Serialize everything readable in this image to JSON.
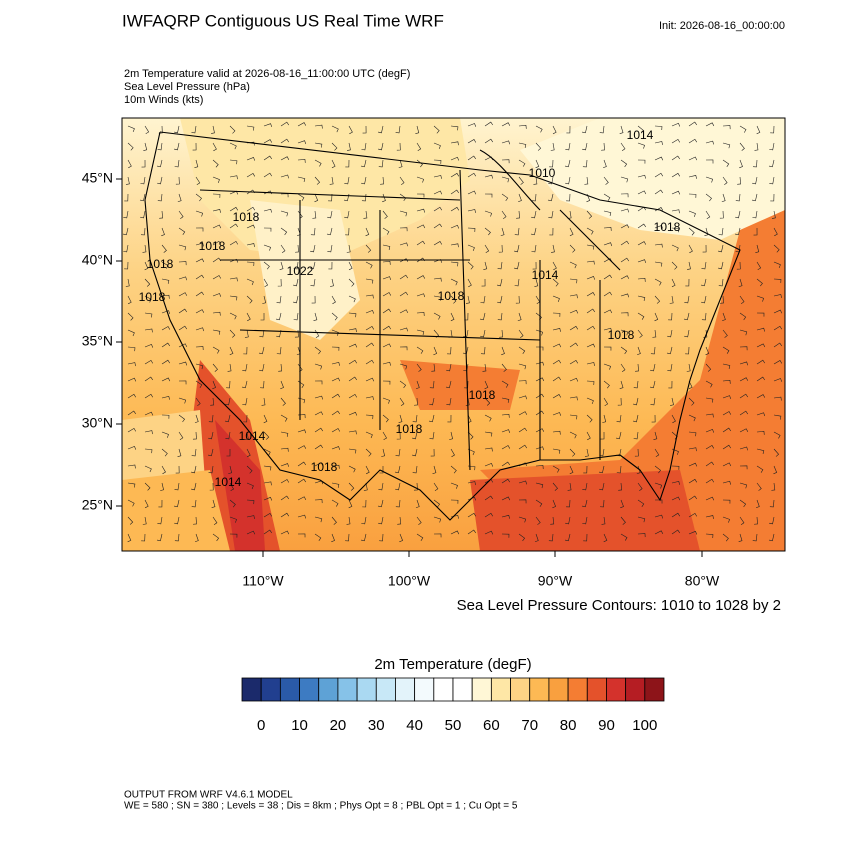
{
  "header": {
    "title": "IWFAQRP Contiguous US Real Time WRF",
    "init": "Init: 2026-08-16_00:00:00"
  },
  "fields": [
    "2m Temperature valid at 2026-08-16_11:00:00 UTC   (degF)",
    "Sea Level Pressure   (hPa)",
    "10m Winds   (kts)"
  ],
  "map": {
    "lat_labels": [
      "45°N",
      "40°N",
      "35°N",
      "30°N",
      "25°N"
    ],
    "lon_labels": [
      "110°W",
      "100°W",
      "90°W",
      "80°W"
    ],
    "contour_labels": [
      "1014",
      "1010",
      "1018",
      "1018",
      "1022",
      "1018",
      "1018",
      "1018",
      "1014",
      "1018",
      "1018",
      "1018",
      "1018",
      "1014",
      "1018",
      "1014"
    ],
    "contour_note": "Sea Level Pressure Contours: 1010 to 1028 by 2"
  },
  "colorbar": {
    "title": "2m Temperature  (degF)",
    "colors": [
      "#1b2a6b",
      "#213f8f",
      "#2a5aa8",
      "#3d7bc2",
      "#5ea2d6",
      "#86c2e8",
      "#aad9f2",
      "#c8e8f7",
      "#e3f3fa",
      "#f3fafd",
      "#ffffff",
      "#ffffff",
      "#fff7d6",
      "#fee7a6",
      "#fdd385",
      "#fdb954",
      "#f9a03f",
      "#f47d33",
      "#e4522b",
      "#d4322c",
      "#b51d23",
      "#8d1419"
    ],
    "labels": [
      0,
      10,
      20,
      30,
      40,
      50,
      60,
      70,
      80,
      90,
      100
    ]
  },
  "footer": [
    "OUTPUT FROM WRF V4.6.1 MODEL",
    "WE = 580 ; SN = 380 ; Levels = 38 ; Dis = 8km ; Phys Opt = 8 ; PBL Opt = 1 ; Cu Opt = 5"
  ]
}
